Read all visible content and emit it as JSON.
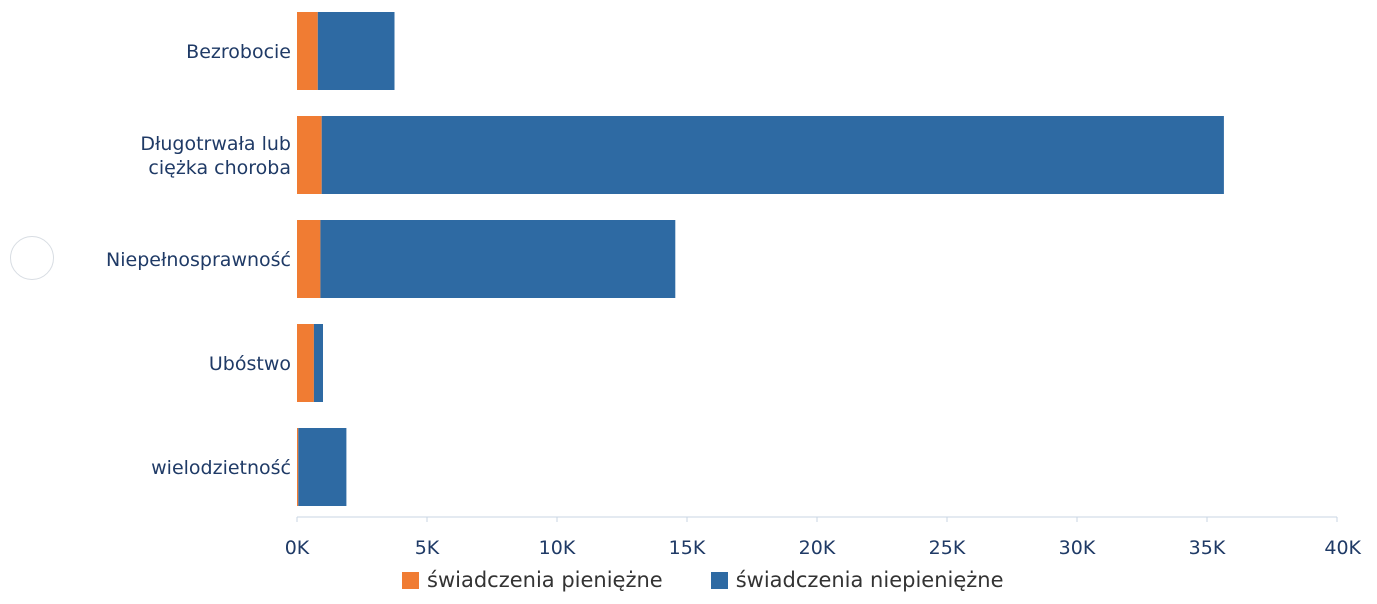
{
  "chart_data": {
    "type": "bar",
    "orientation": "horizontal",
    "stacked": true,
    "categories": [
      "Bezrobocie",
      "Długotrwała lub ciężka choroba",
      "Niepełnosprawność",
      "Ubóstwo",
      "wielodzietność"
    ],
    "category_lines": [
      [
        "Bezrobocie"
      ],
      [
        "Długotrwała lub",
        "ciężka choroba"
      ],
      [
        "Niepełnosprawność"
      ],
      [
        "Ubóstwo"
      ],
      [
        "wielodzietność"
      ]
    ],
    "series": [
      {
        "name": "świadczenia pieniężne",
        "color": "#f07c33",
        "values": [
          800,
          950,
          900,
          650,
          50
        ]
      },
      {
        "name": "świadczenia niepieniężne",
        "color": "#2e6aa3",
        "values": [
          2950,
          34700,
          13650,
          350,
          1850
        ]
      }
    ],
    "x_ticks": [
      "0K",
      "5K",
      "10K",
      "15K",
      "20K",
      "25K",
      "30K",
      "35K",
      "40K"
    ],
    "xlim": [
      0,
      40000
    ],
    "grid": false,
    "legend_position": "bottom"
  },
  "legend": {
    "item1": "świadczenia pieniężne",
    "item2": "świadczenia niepieniężne",
    "color1": "#f07c33",
    "color2": "#2e6aa3"
  }
}
